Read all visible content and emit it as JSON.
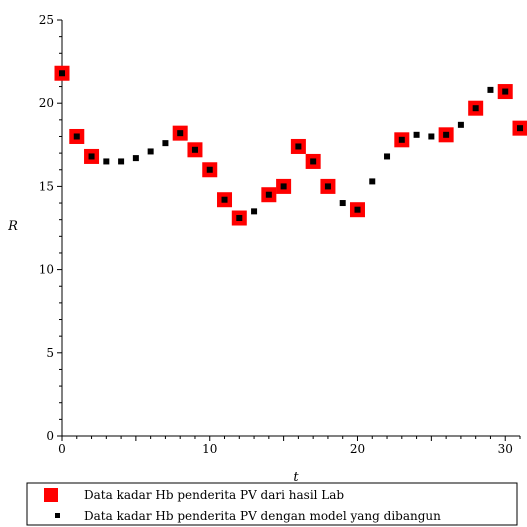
{
  "chart_data": {
    "type": "scatter",
    "title": "",
    "xlabel": "t",
    "ylabel": "R",
    "xlim": [
      0,
      31
    ],
    "ylim": [
      0,
      25
    ],
    "x_ticks": [
      "0",
      "10",
      "20",
      "30"
    ],
    "y_ticks": [
      "0",
      "5",
      "10",
      "15",
      "20",
      "25"
    ],
    "grid": false,
    "legend_position": "bottom",
    "series": [
      {
        "name": "Data kadar Hb penderita PV dari hasil Lab",
        "color": "#ff0000",
        "marker": "large-square",
        "points": [
          {
            "x": 0,
            "y": 21.8
          },
          {
            "x": 1,
            "y": 18.0
          },
          {
            "x": 2,
            "y": 16.8
          },
          {
            "x": 8,
            "y": 18.2
          },
          {
            "x": 9,
            "y": 17.2
          },
          {
            "x": 10,
            "y": 16.0
          },
          {
            "x": 11,
            "y": 14.2
          },
          {
            "x": 12,
            "y": 13.1
          },
          {
            "x": 14,
            "y": 14.5
          },
          {
            "x": 15,
            "y": 15.0
          },
          {
            "x": 16,
            "y": 17.4
          },
          {
            "x": 17,
            "y": 16.5
          },
          {
            "x": 18,
            "y": 15.0
          },
          {
            "x": 20,
            "y": 13.6
          },
          {
            "x": 23,
            "y": 17.8
          },
          {
            "x": 26,
            "y": 18.1
          },
          {
            "x": 28,
            "y": 19.7
          },
          {
            "x": 30,
            "y": 20.7
          },
          {
            "x": 31,
            "y": 18.5
          }
        ]
      },
      {
        "name": "Data kadar Hb penderita PV dengan model yang dibangun",
        "color": "#000000",
        "marker": "small-square",
        "points": [
          {
            "x": 0,
            "y": 21.8
          },
          {
            "x": 1,
            "y": 18.0
          },
          {
            "x": 2,
            "y": 16.8
          },
          {
            "x": 3,
            "y": 16.5
          },
          {
            "x": 4,
            "y": 16.5
          },
          {
            "x": 5,
            "y": 16.7
          },
          {
            "x": 6,
            "y": 17.1
          },
          {
            "x": 7,
            "y": 17.6
          },
          {
            "x": 8,
            "y": 18.2
          },
          {
            "x": 9,
            "y": 17.2
          },
          {
            "x": 10,
            "y": 16.0
          },
          {
            "x": 11,
            "y": 14.2
          },
          {
            "x": 12,
            "y": 13.1
          },
          {
            "x": 13,
            "y": 13.5
          },
          {
            "x": 14,
            "y": 14.5
          },
          {
            "x": 15,
            "y": 15.0
          },
          {
            "x": 16,
            "y": 17.4
          },
          {
            "x": 17,
            "y": 16.5
          },
          {
            "x": 18,
            "y": 15.0
          },
          {
            "x": 19,
            "y": 14.0
          },
          {
            "x": 20,
            "y": 13.6
          },
          {
            "x": 21,
            "y": 15.3
          },
          {
            "x": 22,
            "y": 16.8
          },
          {
            "x": 23,
            "y": 17.8
          },
          {
            "x": 24,
            "y": 18.1
          },
          {
            "x": 25,
            "y": 18.0
          },
          {
            "x": 26,
            "y": 18.1
          },
          {
            "x": 27,
            "y": 18.7
          },
          {
            "x": 28,
            "y": 19.7
          },
          {
            "x": 29,
            "y": 20.8
          },
          {
            "x": 30,
            "y": 20.7
          },
          {
            "x": 31,
            "y": 18.5
          }
        ]
      }
    ]
  }
}
